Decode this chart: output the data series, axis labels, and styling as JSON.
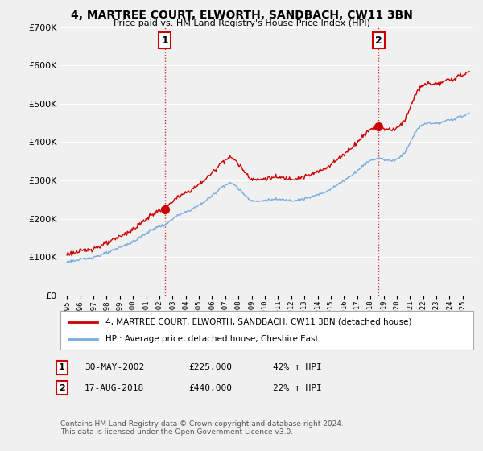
{
  "title": "4, MARTREE COURT, ELWORTH, SANDBACH, CW11 3BN",
  "subtitle": "Price paid vs. HM Land Registry's House Price Index (HPI)",
  "legend_line1": "4, MARTREE COURT, ELWORTH, SANDBACH, CW11 3BN (detached house)",
  "legend_line2": "HPI: Average price, detached house, Cheshire East",
  "annotation1_date": "30-MAY-2002",
  "annotation1_price": "£225,000",
  "annotation1_hpi": "42% ↑ HPI",
  "annotation1_year": 2002.42,
  "annotation1_value": 225000,
  "annotation2_date": "17-AUG-2018",
  "annotation2_price": "£440,000",
  "annotation2_hpi": "22% ↑ HPI",
  "annotation2_year": 2018.63,
  "annotation2_value": 440000,
  "footer": "Contains HM Land Registry data © Crown copyright and database right 2024.\nThis data is licensed under the Open Government Licence v3.0.",
  "hpi_color": "#7aade0",
  "price_color": "#cc0000",
  "background_color": "#f0f0f0",
  "plot_bg_color": "#f0f0f0",
  "grid_color": "#ffffff",
  "ylim": [
    0,
    700000
  ],
  "xlim_start": 1994.5,
  "xlim_end": 2025.8,
  "yticks": [
    0,
    100000,
    200000,
    300000,
    400000,
    500000,
    600000,
    700000
  ]
}
